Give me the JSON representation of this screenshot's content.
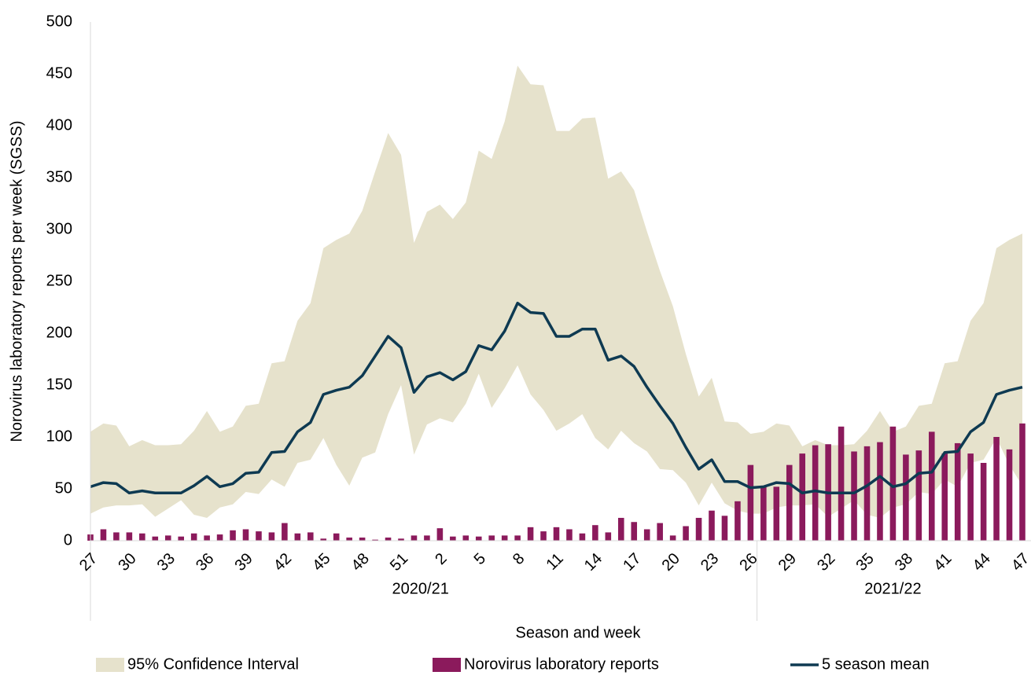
{
  "chart_data": {
    "type": "bar-line-band",
    "ylabel": "Norovirus laboratory reports per week (SGSS)",
    "xlabel": "Season and week",
    "categories": [
      "27",
      null,
      null,
      "30",
      null,
      null,
      "33",
      null,
      null,
      "36",
      null,
      null,
      "39",
      null,
      null,
      "42",
      null,
      null,
      "45",
      null,
      null,
      "48",
      null,
      null,
      "51",
      null,
      null,
      "2",
      null,
      null,
      "5",
      null,
      null,
      "8",
      null,
      null,
      "11",
      null,
      null,
      "14",
      null,
      null,
      "17",
      null,
      null,
      "20",
      null,
      null,
      "23",
      null,
      null,
      "26",
      null,
      null,
      "29",
      null,
      null,
      "32",
      null,
      null,
      "35",
      null,
      null,
      "38",
      null,
      null,
      "41",
      null,
      null,
      "44",
      null,
      null,
      "47"
    ],
    "groups": [
      {
        "label": "2020/21",
        "count": 52
      },
      {
        "label": "2021/22",
        "count": 21
      }
    ],
    "ylim": [
      0,
      500
    ],
    "yticks": [
      0,
      50,
      100,
      150,
      200,
      250,
      300,
      350,
      400,
      450,
      500
    ],
    "series": [
      {
        "name": "95% Confidence Interval",
        "type": "band",
        "color": "#e6e2cc",
        "upper": [
          105,
          113,
          111,
          91,
          97,
          92,
          92,
          93,
          106,
          125,
          105,
          110,
          130,
          132,
          171,
          173,
          212,
          229,
          282,
          290,
          296,
          318,
          356,
          393,
          372,
          287,
          317,
          324,
          310,
          326,
          376,
          368,
          404,
          458,
          440,
          439,
          395,
          395,
          407,
          408,
          349,
          356,
          338,
          298,
          260,
          226,
          180,
          139,
          157,
          115,
          114,
          103,
          105,
          113,
          111,
          91,
          97,
          92,
          92,
          93,
          106,
          125,
          105,
          110,
          130,
          132,
          171,
          173,
          212,
          229,
          282,
          290,
          296
        ],
        "lower": [
          26,
          32,
          34,
          34,
          35,
          23,
          31,
          39,
          25,
          22,
          32,
          35,
          47,
          45,
          59,
          52,
          75,
          78,
          99,
          73,
          53,
          80,
          85,
          122,
          150,
          83,
          112,
          118,
          114,
          132,
          161,
          128,
          147,
          169,
          141,
          126,
          106,
          113,
          122,
          99,
          88,
          106,
          94,
          86,
          69,
          68,
          56,
          34,
          56,
          36,
          29,
          26,
          26,
          32,
          34,
          34,
          35,
          23,
          31,
          39,
          25,
          22,
          32,
          35,
          47,
          45,
          59,
          52,
          75,
          78,
          99,
          73,
          53
        ]
      },
      {
        "name": "Norovirus laboratory reports",
        "type": "bar",
        "color": "#8b1a5c",
        "values": [
          6,
          11,
          8,
          8,
          7,
          4,
          5,
          4,
          7,
          5,
          6,
          10,
          11,
          9,
          8,
          17,
          7,
          8,
          2,
          7,
          3,
          3,
          1,
          3,
          2,
          5,
          5,
          12,
          4,
          5,
          4,
          5,
          5,
          5,
          13,
          9,
          13,
          11,
          7,
          15,
          8,
          22,
          18,
          11,
          17,
          5,
          14,
          22,
          29,
          24,
          38,
          73,
          52,
          52,
          73,
          84,
          92,
          93,
          110,
          86,
          91,
          95,
          110,
          83,
          87,
          105,
          84,
          94,
          84,
          75,
          100,
          88,
          113
        ]
      },
      {
        "name": "5 season mean",
        "type": "line",
        "color": "#0e3a52",
        "values": [
          52,
          56,
          55,
          46,
          48,
          46,
          46,
          46,
          53,
          62,
          52,
          55,
          65,
          66,
          85,
          86,
          105,
          114,
          141,
          145,
          148,
          159,
          178,
          197,
          186,
          143,
          158,
          162,
          155,
          163,
          188,
          184,
          202,
          229,
          220,
          219,
          197,
          197,
          204,
          204,
          174,
          178,
          168,
          148,
          130,
          113,
          90,
          69,
          78,
          57,
          57,
          51,
          52,
          56,
          55,
          46,
          48,
          46,
          46,
          46,
          53,
          62,
          52,
          55,
          65,
          66,
          85,
          86,
          105,
          114,
          141,
          145,
          148
        ]
      }
    ]
  }
}
